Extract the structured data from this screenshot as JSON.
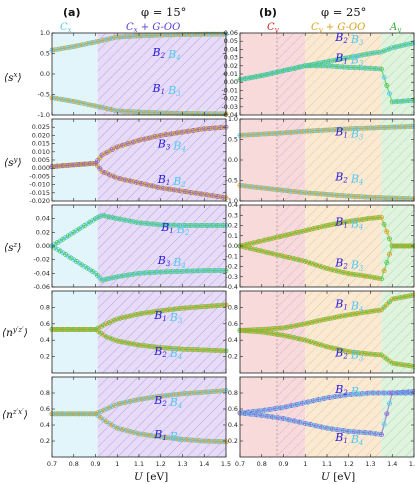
{
  "colors": {
    "cyan": "#55c8f0",
    "blue": "#2a1ad8",
    "green": "#4cc94c",
    "orange": "#d8a018",
    "red": "#d22020",
    "purple": "#8b5fd0",
    "lavender_fill": "#e6dcf8",
    "cyan_fill": "#e2f5fb",
    "red_fill": "#f8dada",
    "orange_fill": "#fbe9d2",
    "green_fill": "#dff3df"
  },
  "panel_a": {
    "label": "(a)",
    "phi": "φ = 15°",
    "regions": [
      "C_x",
      "C_x + G-OO"
    ]
  },
  "panel_b": {
    "label": "(b)",
    "phi": "φ = 25°",
    "regions": [
      "C_y",
      "C_y + G-OO",
      "A_y"
    ]
  },
  "xaxis": {
    "label": "U [eV]",
    "ticks": [
      "0.7",
      "0.8",
      "0.9",
      "1",
      "1.1",
      "1.2",
      "1.3",
      "1.4",
      "1.5"
    ]
  },
  "row_labels": [
    "⟨s^x⟩",
    "⟨s^y⟩",
    "⟨s^z⟩",
    "⟨n^{y'z'}⟩",
    "⟨n^{z'x'}⟩"
  ],
  "chart_data": [
    {
      "type": "scatter",
      "panel": "a",
      "row": "s^x",
      "ylim": [
        -1.0,
        1.0
      ],
      "yticks": [
        "1.0",
        "0.5",
        "0.0",
        "-0.5",
        "-1.0"
      ],
      "annotations": [
        "B_1 B_3",
        "B_2 B_4"
      ],
      "series": [
        {
          "name": "B_1 B_3",
          "x": [
            0.7,
            0.8,
            0.9,
            0.95,
            1.0,
            1.1,
            1.2,
            1.3,
            1.4,
            1.5
          ],
          "values": [
            0.58,
            0.67,
            0.78,
            0.84,
            0.9,
            0.93,
            0.95,
            0.96,
            0.97,
            0.97
          ]
        },
        {
          "name": "B_2 B_4",
          "x": [
            0.7,
            0.8,
            0.9,
            0.95,
            1.0,
            1.1,
            1.2,
            1.3,
            1.4,
            1.5
          ],
          "values": [
            -0.58,
            -0.67,
            -0.78,
            -0.84,
            -0.9,
            -0.93,
            -0.95,
            -0.96,
            -0.97,
            -0.97
          ]
        }
      ]
    },
    {
      "type": "scatter",
      "panel": "a",
      "row": "s^y",
      "ylim": [
        -0.02,
        0.03
      ],
      "yticks": [
        "0.025",
        "0.020",
        "0.015",
        "0.010",
        "0.005",
        "0.000",
        "-0.005",
        "-0.010",
        "-0.015",
        "-0.020"
      ],
      "annotations": [
        "B_3 B_4",
        "B_1 B_2"
      ],
      "series": [
        {
          "name": "B_3 B_4",
          "x": [
            0.7,
            0.8,
            0.9,
            0.93,
            1.0,
            1.1,
            1.2,
            1.3,
            1.4,
            1.5
          ],
          "values": [
            0.001,
            0.002,
            0.003,
            0.008,
            0.013,
            0.017,
            0.02,
            0.022,
            0.024,
            0.025
          ]
        },
        {
          "name": "B_1 B_2",
          "x": [
            0.7,
            0.8,
            0.9,
            0.93,
            1.0,
            1.1,
            1.2,
            1.3,
            1.4,
            1.5
          ],
          "values": [
            0.001,
            0.002,
            0.003,
            -0.002,
            -0.006,
            -0.009,
            -0.012,
            -0.014,
            -0.016,
            -0.018
          ]
        }
      ]
    },
    {
      "type": "scatter",
      "panel": "a",
      "row": "s^z",
      "ylim": [
        -0.06,
        0.06
      ],
      "yticks": [
        "0.04",
        "0.02",
        "0.00",
        "-0.02",
        "-0.04",
        "-0.06"
      ],
      "annotations": [
        "B_1 B_2",
        "B_3 B_4"
      ],
      "series": [
        {
          "name": "B_1 B_2",
          "x": [
            0.7,
            0.8,
            0.9,
            0.93,
            1.0,
            1.1,
            1.2,
            1.3,
            1.4,
            1.5
          ],
          "values": [
            0.0,
            0.02,
            0.04,
            0.045,
            0.04,
            0.034,
            0.031,
            0.03,
            0.03,
            0.03
          ]
        },
        {
          "name": "B_3 B_4",
          "x": [
            0.7,
            0.8,
            0.9,
            0.93,
            1.0,
            1.1,
            1.2,
            1.3,
            1.4,
            1.5
          ],
          "values": [
            0.0,
            -0.02,
            -0.04,
            -0.05,
            -0.045,
            -0.04,
            -0.038,
            -0.037,
            -0.036,
            -0.036
          ]
        }
      ]
    },
    {
      "type": "scatter",
      "panel": "a",
      "row": "n^{y'z'}",
      "ylim": [
        0.0,
        1.0
      ],
      "yticks": [
        "0.8",
        "0.6",
        "0.4",
        "0.2"
      ],
      "annotations": [
        "B_1 B_3",
        "B_2 B_4"
      ],
      "series": [
        {
          "name": "B_1 B_3",
          "x": [
            0.7,
            0.8,
            0.9,
            0.95,
            1.0,
            1.1,
            1.2,
            1.3,
            1.4,
            1.5
          ],
          "values": [
            0.53,
            0.53,
            0.53,
            0.6,
            0.66,
            0.72,
            0.76,
            0.79,
            0.81,
            0.83
          ]
        },
        {
          "name": "B_2 B_4",
          "x": [
            0.7,
            0.8,
            0.9,
            0.95,
            1.0,
            1.1,
            1.2,
            1.3,
            1.4,
            1.5
          ],
          "values": [
            0.53,
            0.53,
            0.53,
            0.44,
            0.39,
            0.34,
            0.31,
            0.29,
            0.28,
            0.27
          ]
        }
      ]
    },
    {
      "type": "scatter",
      "panel": "a",
      "row": "n^{z'x'}",
      "ylim": [
        0.0,
        1.0
      ],
      "yticks": [
        "0.8",
        "0.6",
        "0.4",
        "0.2"
      ],
      "annotations": [
        "B_2 B_4",
        "B_1 B_3"
      ],
      "series": [
        {
          "name": "B_2 B_4",
          "x": [
            0.7,
            0.8,
            0.9,
            0.95,
            1.0,
            1.1,
            1.2,
            1.3,
            1.4,
            1.5
          ],
          "values": [
            0.54,
            0.54,
            0.54,
            0.6,
            0.66,
            0.72,
            0.76,
            0.79,
            0.81,
            0.83
          ]
        },
        {
          "name": "B_1 B_3",
          "x": [
            0.7,
            0.8,
            0.9,
            0.95,
            1.0,
            1.1,
            1.2,
            1.3,
            1.4,
            1.5
          ],
          "values": [
            0.54,
            0.54,
            0.54,
            0.44,
            0.36,
            0.29,
            0.25,
            0.22,
            0.2,
            0.19
          ]
        }
      ]
    },
    {
      "type": "scatter",
      "panel": "b",
      "row": "s^x",
      "ylim": [
        -0.04,
        0.06
      ],
      "yticks": [
        "0.06",
        "0.05",
        "0.04",
        "0.03",
        "0.02",
        "0.01",
        "0.00",
        "-0.01",
        "-0.02",
        "-0.03",
        "-0.04"
      ],
      "annotations": [
        "B_2 B_3",
        "B_1 B_3"
      ],
      "series": [
        {
          "name": "B_2 B_3",
          "x": [
            0.7,
            0.8,
            0.9,
            1.0,
            1.1,
            1.2,
            1.3,
            1.35,
            1.4,
            1.5
          ],
          "values": [
            0.003,
            0.008,
            0.014,
            0.02,
            0.025,
            0.03,
            0.035,
            0.037,
            0.042,
            0.048
          ]
        },
        {
          "name": "B_1 B_3",
          "x": [
            0.7,
            0.8,
            0.9,
            1.0,
            1.1,
            1.2,
            1.3,
            1.35,
            1.4,
            1.5
          ],
          "values": [
            0.003,
            0.008,
            0.014,
            0.02,
            0.02,
            0.018,
            0.017,
            0.016,
            -0.024,
            -0.022
          ]
        }
      ]
    },
    {
      "type": "scatter",
      "panel": "b",
      "row": "s^y",
      "ylim": [
        -1.0,
        1.0
      ],
      "yticks": [
        "1.0",
        "0.5",
        "0.0",
        "-0.5",
        "-1.0"
      ],
      "annotations": [
        "B_1 B_3",
        "B_2 B_4"
      ],
      "series": [
        {
          "name": "B_1 B_3",
          "x": [
            0.7,
            0.8,
            0.9,
            1.0,
            1.1,
            1.2,
            1.3,
            1.4,
            1.5
          ],
          "values": [
            0.6,
            0.63,
            0.66,
            0.7,
            0.73,
            0.76,
            0.78,
            0.8,
            0.82
          ]
        },
        {
          "name": "B_2 B_4",
          "x": [
            0.7,
            0.8,
            0.9,
            1.0,
            1.1,
            1.2,
            1.3,
            1.4,
            1.5
          ],
          "values": [
            -0.62,
            -0.68,
            -0.74,
            -0.8,
            -0.84,
            -0.88,
            -0.91,
            -0.93,
            -0.95
          ]
        }
      ]
    },
    {
      "type": "scatter",
      "panel": "b",
      "row": "s^z",
      "ylim": [
        -0.4,
        0.4
      ],
      "yticks": [
        "0.4",
        "0.3",
        "0.2",
        "0.1",
        "0.0",
        "-0.1",
        "-0.2",
        "-0.3",
        "-0.4"
      ],
      "annotations": [
        "B_1 B_4",
        "B_2 B_3"
      ],
      "series": [
        {
          "name": "B_1 B_4",
          "x": [
            0.7,
            0.8,
            0.9,
            1.0,
            1.1,
            1.2,
            1.3,
            1.35,
            1.4,
            1.5
          ],
          "values": [
            0.0,
            0.05,
            0.1,
            0.15,
            0.2,
            0.24,
            0.27,
            0.28,
            0.0,
            0.0
          ]
        },
        {
          "name": "B_2 B_3",
          "x": [
            0.7,
            0.8,
            0.9,
            1.0,
            1.1,
            1.2,
            1.3,
            1.35,
            1.4,
            1.5
          ],
          "values": [
            0.0,
            -0.05,
            -0.1,
            -0.15,
            -0.22,
            -0.27,
            -0.3,
            -0.32,
            0.0,
            0.0
          ]
        }
      ]
    },
    {
      "type": "scatter",
      "panel": "b",
      "row": "n^{y'z'}",
      "ylim": [
        0.0,
        1.0
      ],
      "yticks": [
        "0.8",
        "0.6",
        "0.4",
        "0.2"
      ],
      "annotations": [
        "B_1 B_4",
        "B_2 B_3"
      ],
      "series": [
        {
          "name": "B_1 B_4",
          "x": [
            0.7,
            0.8,
            0.9,
            1.0,
            1.1,
            1.2,
            1.3,
            1.35,
            1.4,
            1.5
          ],
          "values": [
            0.52,
            0.53,
            0.55,
            0.6,
            0.66,
            0.71,
            0.75,
            0.77,
            0.9,
            0.95
          ]
        },
        {
          "name": "B_2 B_3",
          "x": [
            0.7,
            0.8,
            0.9,
            1.0,
            1.1,
            1.2,
            1.3,
            1.35,
            1.4,
            1.5
          ],
          "values": [
            0.52,
            0.5,
            0.46,
            0.4,
            0.32,
            0.26,
            0.23,
            0.22,
            0.12,
            0.08
          ]
        }
      ]
    },
    {
      "type": "scatter",
      "panel": "b",
      "row": "n^{z'x'}",
      "ylim": [
        0.0,
        1.0
      ],
      "yticks": [
        "0.8",
        "0.6",
        "0.4",
        "0.2"
      ],
      "annotations": [
        "B_2 B_3",
        "B_1 B_4"
      ],
      "series": [
        {
          "name": "B_2 B_3",
          "x": [
            0.7,
            0.8,
            0.9,
            1.0,
            1.1,
            1.2,
            1.3,
            1.35,
            1.4,
            1.5
          ],
          "values": [
            0.55,
            0.58,
            0.62,
            0.68,
            0.74,
            0.78,
            0.8,
            0.8,
            0.8,
            0.8
          ]
        },
        {
          "name": "B_1 B_4",
          "x": [
            0.7,
            0.8,
            0.9,
            1.0,
            1.1,
            1.2,
            1.3,
            1.35,
            1.4,
            1.5
          ],
          "values": [
            0.55,
            0.52,
            0.48,
            0.42,
            0.36,
            0.32,
            0.3,
            0.28,
            0.8,
            0.82
          ]
        }
      ]
    }
  ]
}
